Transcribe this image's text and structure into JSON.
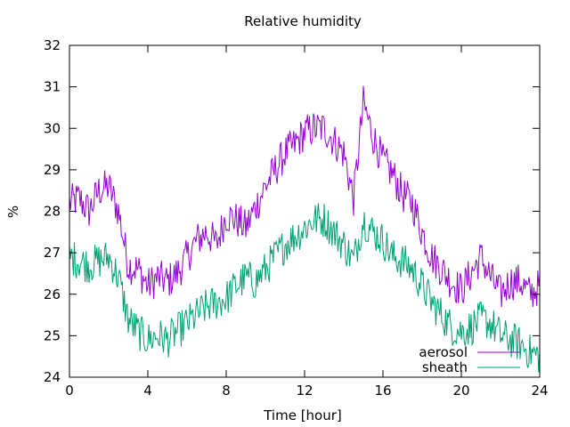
{
  "chart_data": {
    "type": "line",
    "title": "Relative humidity",
    "xlabel": "Time [hour]",
    "ylabel": "%",
    "xlim": [
      0,
      24
    ],
    "ylim": [
      24,
      32
    ],
    "xticks": [
      0,
      4,
      8,
      12,
      16,
      20,
      24
    ],
    "yticks": [
      24,
      25,
      26,
      27,
      28,
      29,
      30,
      31,
      32
    ],
    "grid": false,
    "legend_position": "bottom-right",
    "series": [
      {
        "name": "aerosol",
        "color": "#9400d3",
        "x": [
          0,
          0.5,
          1,
          1.5,
          2,
          2.5,
          3,
          3.5,
          4,
          4.5,
          5,
          5.5,
          6,
          6.5,
          7,
          7.5,
          8,
          8.5,
          9,
          9.5,
          10,
          10.5,
          11,
          11.5,
          12,
          12.5,
          13,
          13.5,
          14,
          14.5,
          15,
          15.5,
          16,
          16.5,
          17,
          17.5,
          18,
          18.5,
          19,
          19.5,
          20,
          20.5,
          21,
          21.5,
          22,
          22.5,
          23,
          23.5,
          24
        ],
        "values": [
          28.2,
          28.3,
          28.0,
          28.5,
          28.6,
          28.0,
          26.7,
          26.6,
          26.2,
          26.4,
          26.3,
          26.5,
          26.9,
          27.3,
          27.5,
          27.2,
          27.9,
          27.8,
          27.6,
          28.1,
          28.6,
          29.0,
          29.4,
          29.6,
          29.9,
          30.0,
          30.0,
          29.7,
          29.4,
          28.3,
          30.6,
          29.8,
          29.2,
          28.9,
          28.4,
          28.2,
          27.5,
          26.9,
          26.6,
          26.3,
          26.1,
          26.5,
          26.9,
          26.4,
          26.0,
          26.3,
          26.3,
          26.0,
          26.2
        ]
      },
      {
        "name": "sheath",
        "color": "#009e73",
        "x": [
          0,
          0.5,
          1,
          1.5,
          2,
          2.5,
          3,
          3.5,
          4,
          4.5,
          5,
          5.5,
          6,
          6.5,
          7,
          7.5,
          8,
          8.5,
          9,
          9.5,
          10,
          10.5,
          11,
          11.5,
          12,
          12.5,
          13,
          13.5,
          14,
          14.5,
          15,
          15.5,
          16,
          16.5,
          17,
          17.5,
          18,
          18.5,
          19,
          19.5,
          20,
          20.5,
          21,
          21.5,
          22,
          22.5,
          23,
          23.5,
          24
        ],
        "values": [
          26.9,
          26.8,
          26.7,
          26.8,
          26.9,
          26.4,
          25.4,
          25.1,
          24.9,
          25.0,
          24.9,
          25.1,
          25.3,
          25.5,
          25.7,
          25.8,
          25.9,
          26.2,
          26.4,
          26.3,
          26.6,
          26.9,
          27.2,
          27.4,
          27.6,
          27.8,
          27.8,
          27.5,
          27.2,
          26.8,
          27.8,
          27.5,
          27.3,
          26.9,
          26.8,
          26.6,
          26.2,
          25.8,
          25.5,
          25.2,
          25.1,
          25.2,
          25.4,
          25.3,
          25.0,
          24.9,
          24.8,
          24.6,
          24.5
        ]
      }
    ]
  }
}
